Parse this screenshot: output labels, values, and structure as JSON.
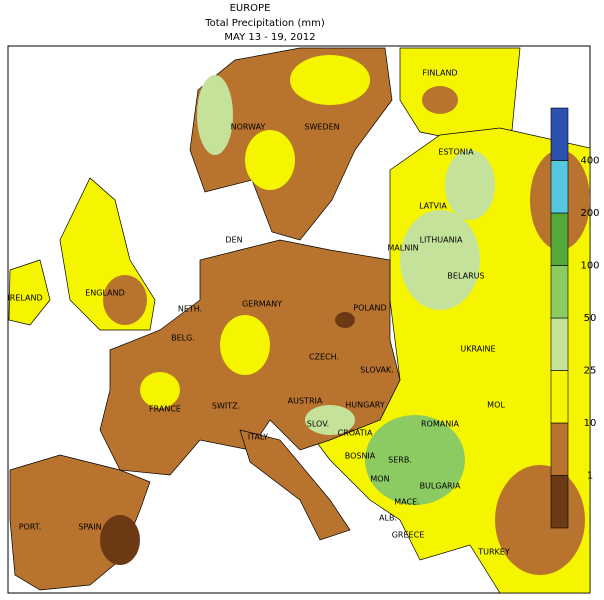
{
  "header": {
    "title": "EUROPE",
    "subtitle": "Total Precipitation (mm)",
    "period": "MAY 13 - 19, 2012"
  },
  "legend": {
    "colors": [
      "#6b3a14",
      "#b8742e",
      "#f5f500",
      "#c4e29a",
      "#8ccb62",
      "#55a83a",
      "#55c8e0",
      "#2c52b0"
    ],
    "thresholds": [
      1,
      10,
      25,
      50,
      100,
      200,
      400
    ]
  },
  "labels": [
    "FINLAND",
    "NORWAY",
    "SWEDEN",
    "ESTONIA",
    "LATVIA",
    "DEN",
    "LITHUANIA",
    "MALNIN",
    "BELARUS",
    "IRELAND",
    "ENGLAND",
    "GERMANY",
    "POLAND",
    "NETH.",
    "BELG.",
    "CZECH.",
    "UKRAINE",
    "SLOVAK.",
    "FRANCE",
    "SWITZ.",
    "AUSTRIA",
    "HUNGARY",
    "MOL",
    "ROMANIA",
    "SLOV.",
    "CROATIA",
    "ITALY",
    "BOSNIA",
    "SERB.",
    "MON",
    "BULGARIA",
    "MACE.",
    "ALB.",
    "PORT.",
    "SPAIN",
    "GREECE",
    "TURKEY"
  ]
}
